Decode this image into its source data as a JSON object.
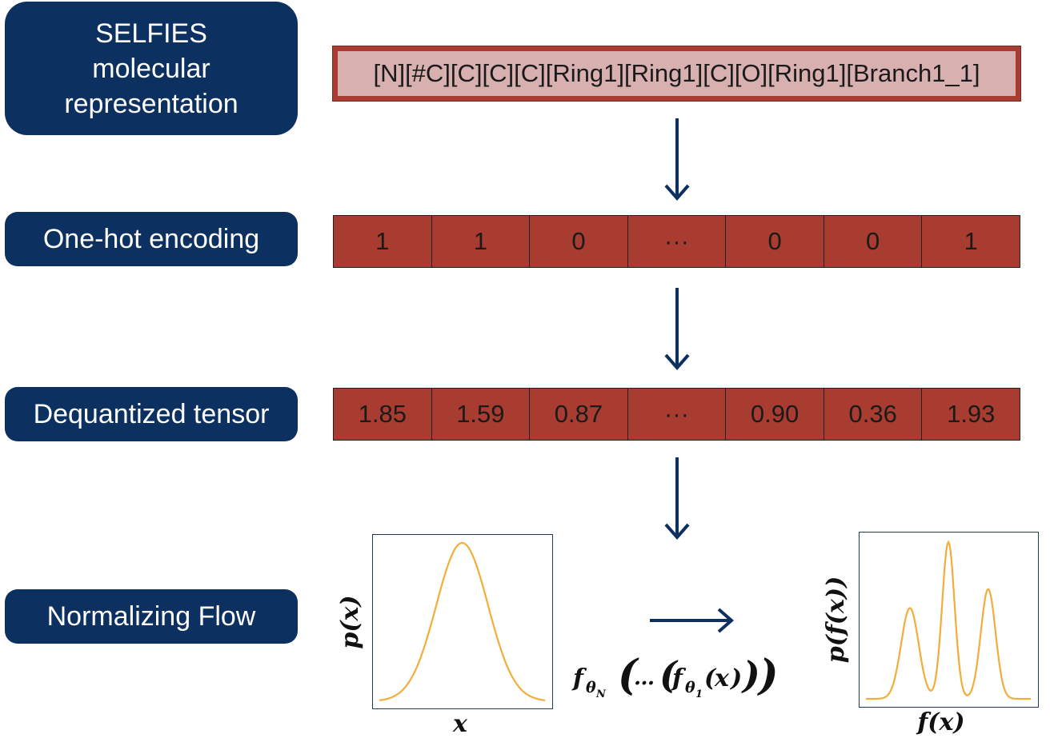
{
  "labels": {
    "selfies": [
      "SELFIES",
      "molecular",
      "representation"
    ],
    "onehot": "One-hot encoding",
    "dequantized": "Dequantized tensor",
    "flow": "Normalizing Flow"
  },
  "selfies_string": "[N][#C][C][C][C][Ring1][Ring1][C][O][Ring1][Branch1_1]",
  "onehot_cells": [
    "1",
    "1",
    "0",
    "···",
    "0",
    "0",
    "1"
  ],
  "dequantized_cells": [
    "1.85",
    "1.59",
    "0.87",
    "···",
    "0.90",
    "0.36",
    "1.93"
  ],
  "plots": {
    "left": {
      "ylabel": "p(x)",
      "xlabel": "x"
    },
    "right": {
      "ylabel": "p(f(x))",
      "xlabel": "f(x)"
    }
  },
  "flow_formula": "fθN(…(fθ1(x)))",
  "colors": {
    "label_bg": "#0c3060",
    "cell_bg": "#a93c30",
    "selfies_bg": "#d9b0b0",
    "arrow": "#0c3060",
    "curve": "#f2ad3a"
  }
}
